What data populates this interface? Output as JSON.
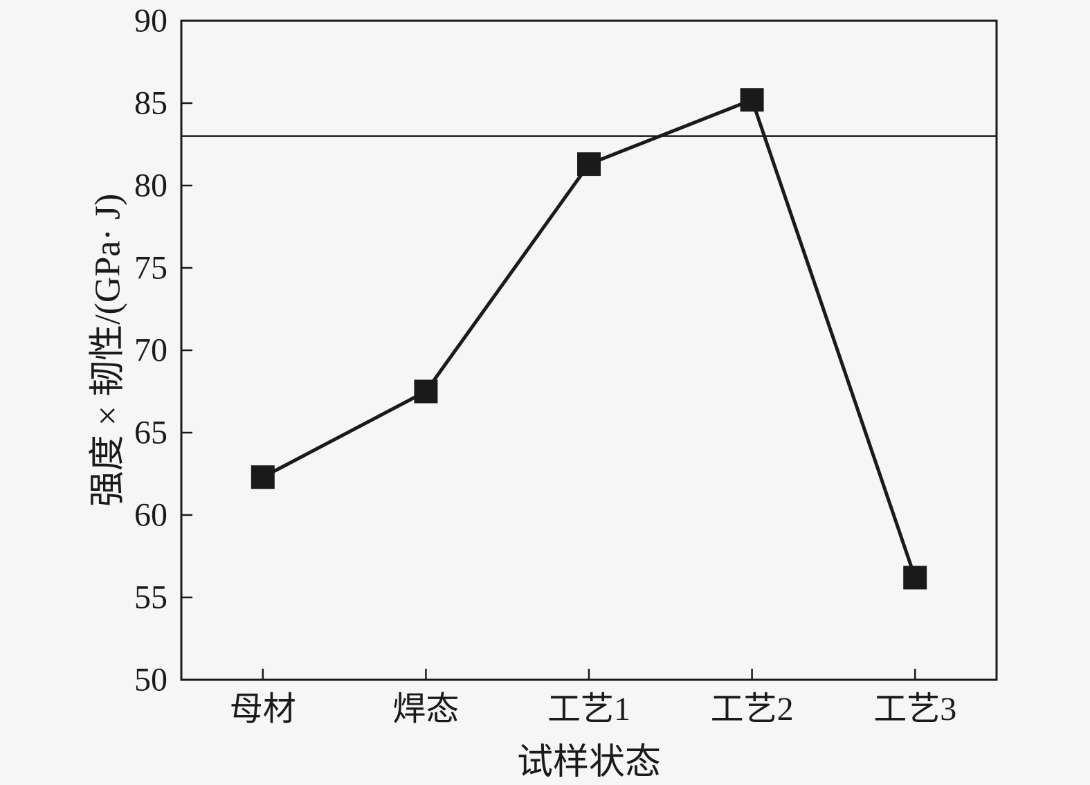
{
  "chart_data": {
    "type": "line",
    "title": "",
    "xlabel": "试样状态",
    "ylabel": "强度 × 韧性/(GPa· J)",
    "categories": [
      "母材",
      "焊态",
      "工艺1",
      "工艺2",
      "工艺3"
    ],
    "series": [
      {
        "name": "强度×韧性",
        "values": [
          62.3,
          67.5,
          81.3,
          85.2,
          56.2
        ]
      }
    ],
    "reference_line_y": 83,
    "ylim": [
      50,
      90
    ],
    "yticks": [
      50,
      55,
      60,
      65,
      70,
      75,
      80,
      85,
      90
    ],
    "grid": false,
    "legend": "none",
    "marker": "filled-square",
    "line_color": "#1a1a1a",
    "marker_color": "#1a1a1a",
    "axis_color": "#1a1a1a",
    "background_color": "#f6f6f6"
  }
}
